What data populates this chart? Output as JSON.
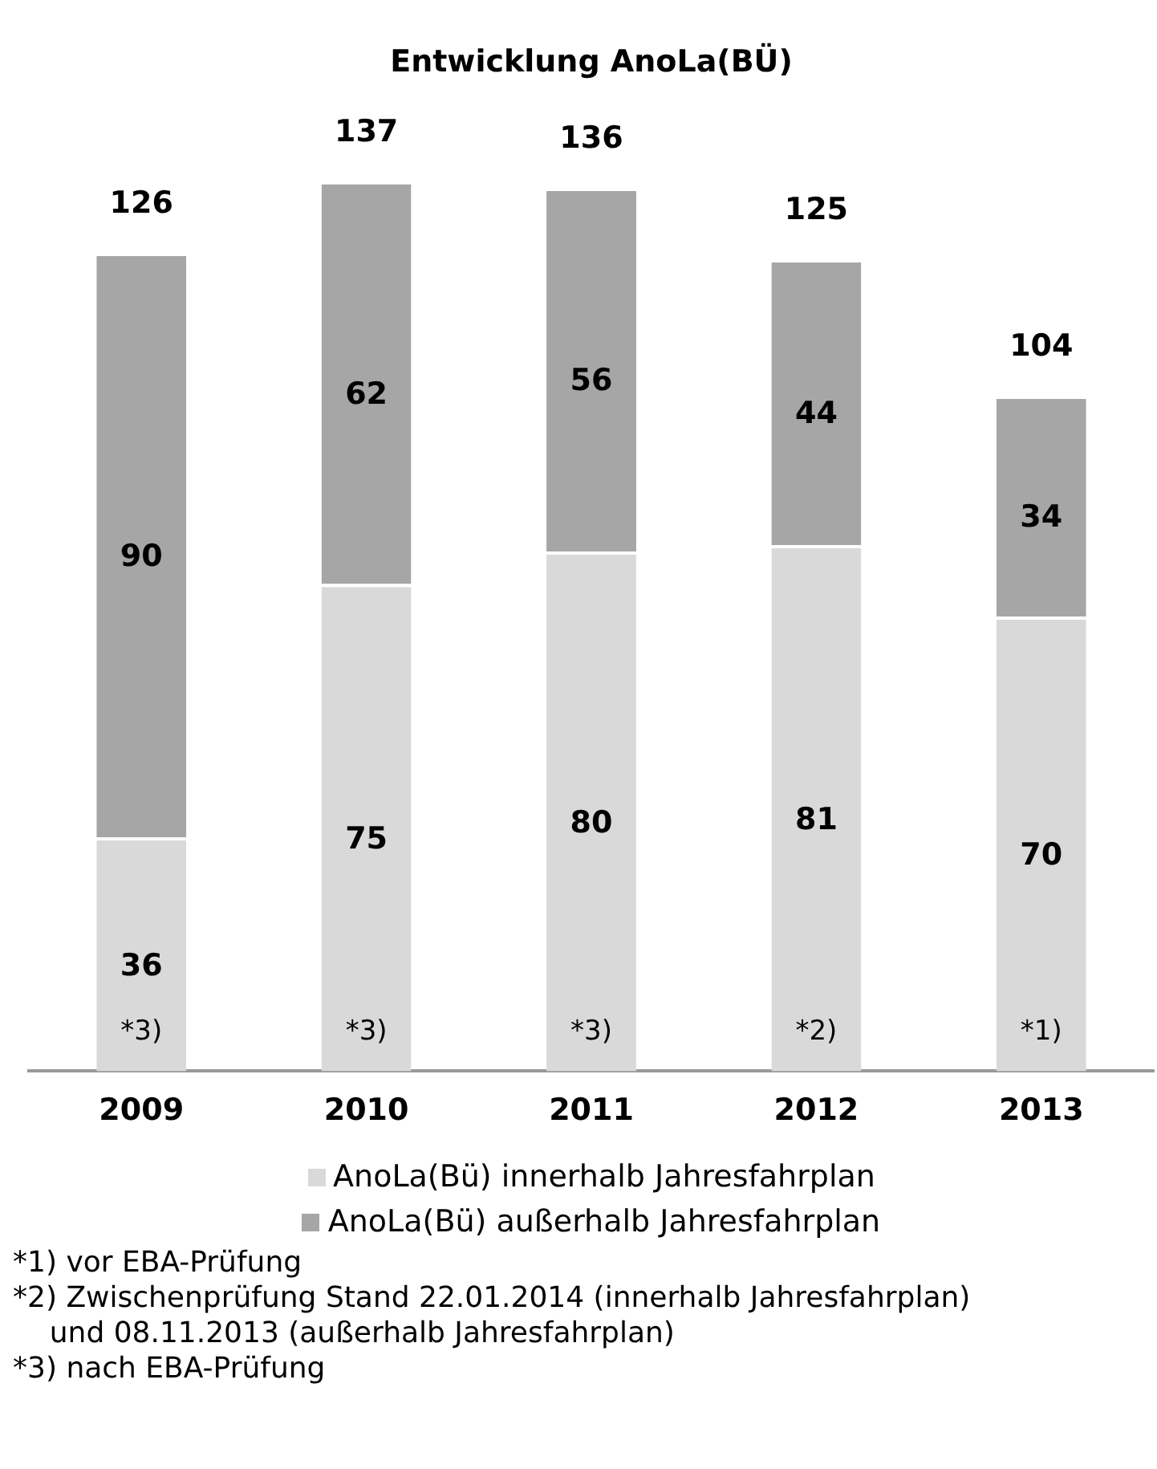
{
  "chart_data": {
    "type": "bar",
    "title": "Entwicklung AnoLa(BÜ)",
    "stacked": true,
    "data_labels": true,
    "grid": false,
    "legend": "bottom",
    "categories": [
      "2009",
      "2010",
      "2011",
      "2012",
      "2013"
    ],
    "series": [
      {
        "name": "AnoLa(Bü) innerhalb Jahresfahrplan",
        "color": "#d9d9d9",
        "values": [
          36,
          75,
          80,
          81,
          70
        ]
      },
      {
        "name": "AnoLa(Bü) außerhalb Jahresfahrplan",
        "color": "#a6a6a6",
        "values": [
          90,
          62,
          56,
          44,
          34
        ]
      }
    ],
    "totals": [
      "126",
      "137",
      "136",
      "125",
      "104"
    ],
    "annotations": [
      "*3)",
      "*3)",
      "*3)",
      "*2)",
      "*1)",
      "*1) vor EBA-Prüfung",
      "*2) Zwischenprüfung Stand 22.01.2014 (innerhalb Jahresfahrplan)\nund 08.11.2013 (außerhalb Jahresfahrplan)",
      "*3) nach EBA-Prüfung"
    ]
  }
}
